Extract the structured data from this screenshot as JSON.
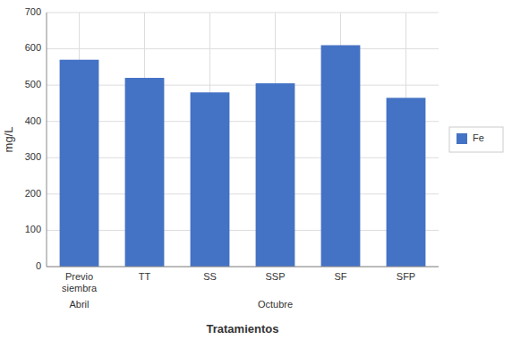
{
  "chart_data": {
    "type": "bar",
    "categories": [
      "Previo\nsiembra",
      "TT",
      "SS",
      "SSP",
      "SF",
      "SFP"
    ],
    "series": [
      {
        "name": "Fe",
        "color": "#4472C4",
        "values": [
          570,
          520,
          480,
          505,
          610,
          465
        ]
      }
    ],
    "xlabel": "Tratamientos",
    "ylabel": "mg/L",
    "ylim": [
      0,
      700
    ],
    "yticks": [
      0,
      100,
      200,
      300,
      400,
      500,
      600,
      700
    ],
    "annotations": [
      "Abril",
      "Octubre"
    ],
    "grid": true,
    "legend": "right"
  }
}
